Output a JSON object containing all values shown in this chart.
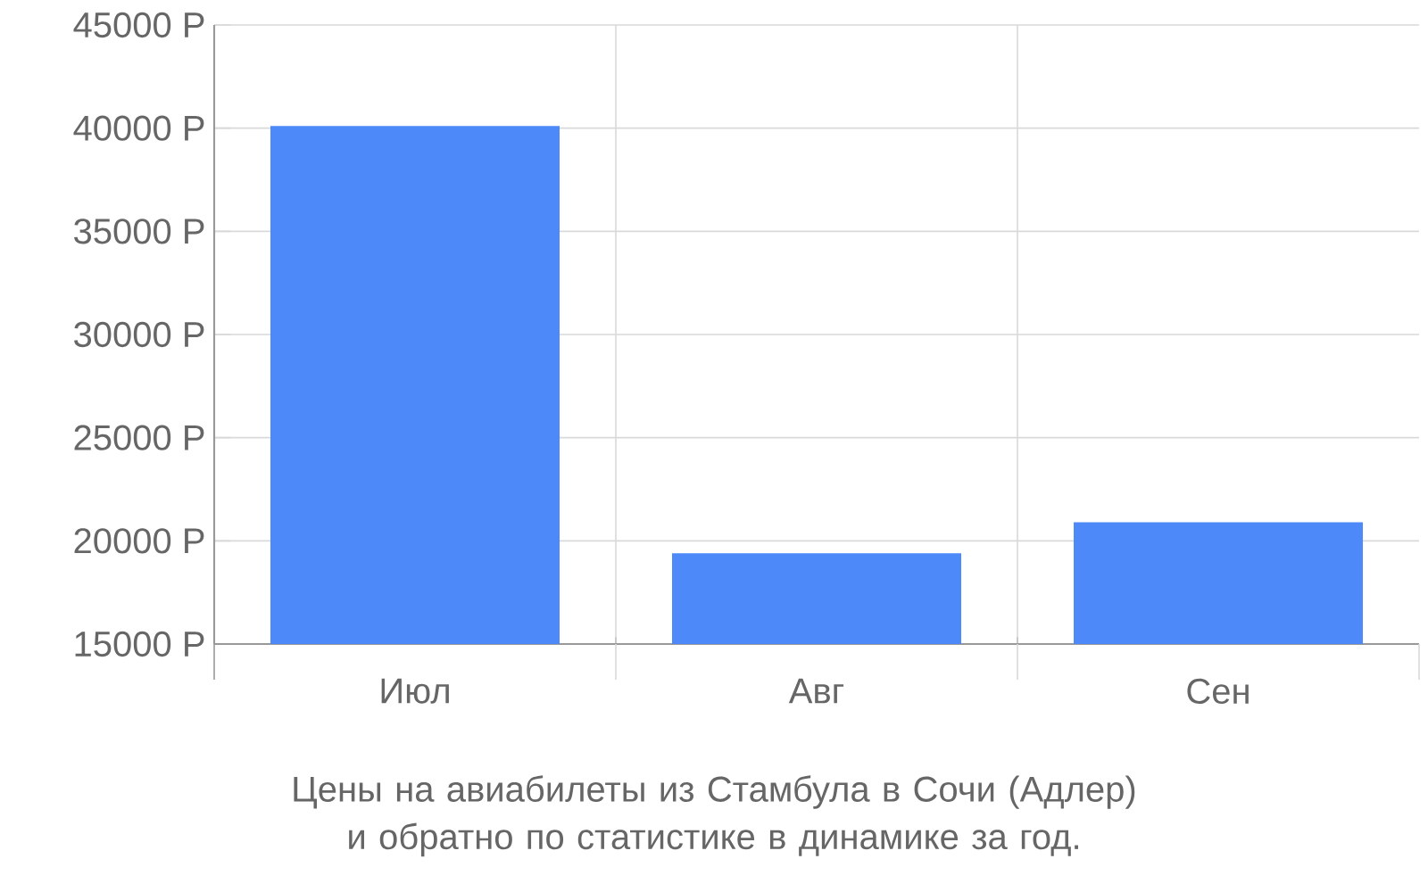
{
  "chart_data": {
    "type": "bar",
    "title": "Цены на авиабилеты из Стамбула в Сочи (Адлер) и обратно по статистике в динамике за год.",
    "categories": [
      "Июл",
      "Авг",
      "Сен"
    ],
    "values": [
      40100,
      19400,
      20900
    ],
    "color": "#4d89f9",
    "ylim": [
      15000,
      45000
    ],
    "yticks": [
      {
        "value": 15000,
        "label": "15000 Р"
      },
      {
        "value": 20000,
        "label": "20000 Р"
      },
      {
        "value": 25000,
        "label": "25000 Р"
      },
      {
        "value": 30000,
        "label": "30000 Р"
      },
      {
        "value": 35000,
        "label": "35000 Р"
      },
      {
        "value": 40000,
        "label": "40000 Р"
      },
      {
        "value": 45000,
        "label": "45000 Р"
      }
    ],
    "grid": true
  }
}
